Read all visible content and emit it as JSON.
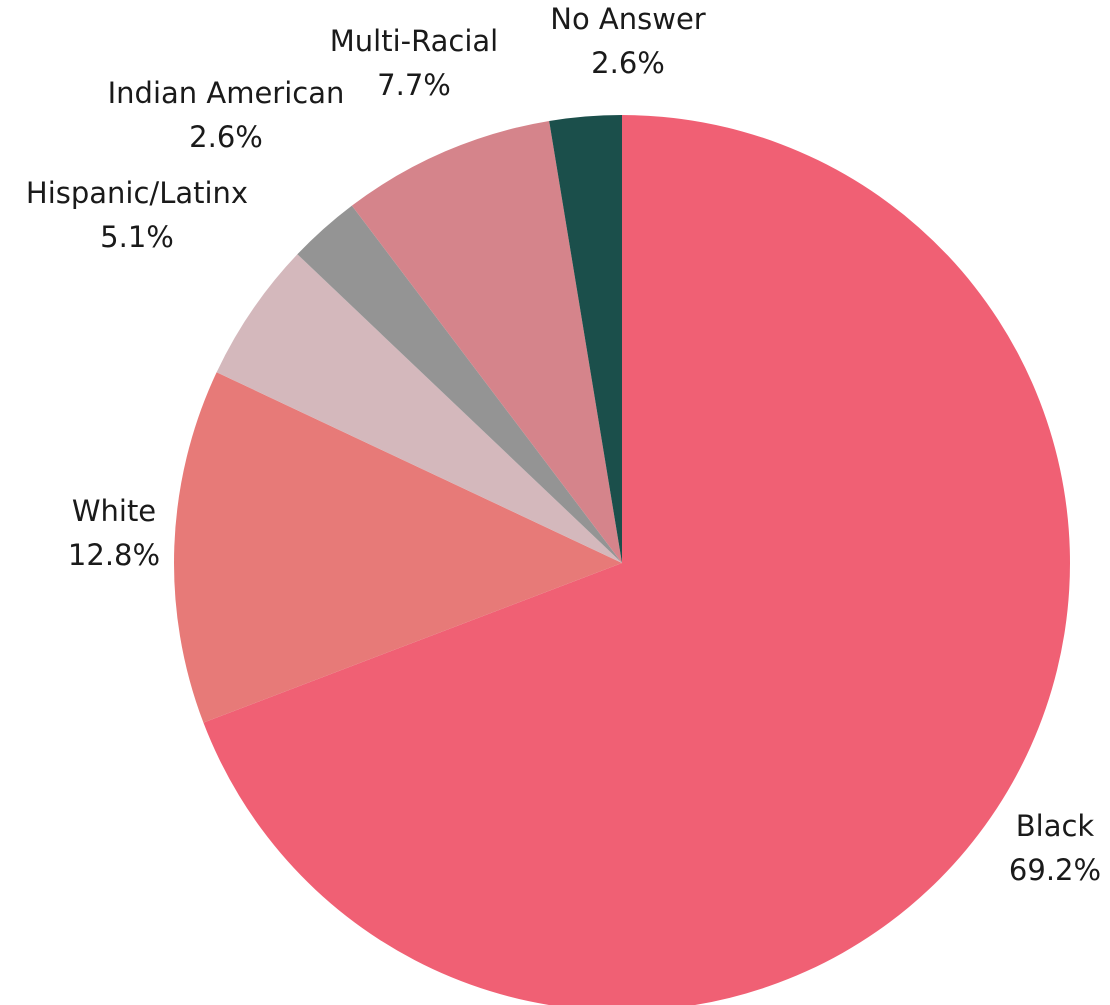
{
  "chart_data": {
    "type": "pie",
    "title": "",
    "start_angle_deg": 0,
    "direction": "clockwise",
    "slices": [
      {
        "name": "Black",
        "value": 69.2,
        "label": "69.2%",
        "color": "#f06074"
      },
      {
        "name": "White",
        "value": 12.8,
        "label": "12.8%",
        "color": "#e77a78"
      },
      {
        "name": "Hispanic/Latinx",
        "value": 5.1,
        "label": "5.1%",
        "color": "#d4b8bc"
      },
      {
        "name": "Indian American",
        "value": 2.6,
        "label": "2.6%",
        "color": "#949494"
      },
      {
        "name": "Multi-Racial",
        "value": 7.7,
        "label": "7.7%",
        "color": "#d5848b"
      },
      {
        "name": "No Answer",
        "value": 2.6,
        "label": "2.6%",
        "color": "#1b4f4b"
      }
    ]
  }
}
